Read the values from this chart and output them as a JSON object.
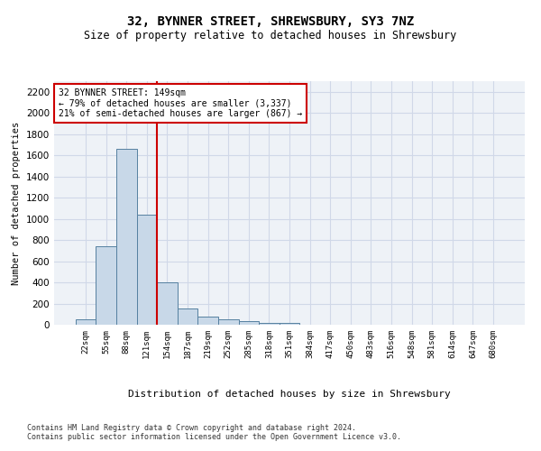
{
  "title": "32, BYNNER STREET, SHREWSBURY, SY3 7NZ",
  "subtitle": "Size of property relative to detached houses in Shrewsbury",
  "xlabel": "Distribution of detached houses by size in Shrewsbury",
  "ylabel": "Number of detached properties",
  "footer_line1": "Contains HM Land Registry data © Crown copyright and database right 2024.",
  "footer_line2": "Contains public sector information licensed under the Open Government Licence v3.0.",
  "bar_labels": [
    "22sqm",
    "55sqm",
    "88sqm",
    "121sqm",
    "154sqm",
    "187sqm",
    "219sqm",
    "252sqm",
    "285sqm",
    "318sqm",
    "351sqm",
    "384sqm",
    "417sqm",
    "450sqm",
    "483sqm",
    "516sqm",
    "548sqm",
    "581sqm",
    "614sqm",
    "647sqm",
    "680sqm"
  ],
  "bar_values": [
    50,
    740,
    1660,
    1040,
    400,
    150,
    80,
    50,
    30,
    20,
    20,
    0,
    0,
    0,
    0,
    0,
    0,
    0,
    0,
    0,
    0
  ],
  "bar_color": "#c8d8e8",
  "bar_edge_color": "#5580a0",
  "vline_color": "#cc0000",
  "annotation_text": "32 BYNNER STREET: 149sqm\n← 79% of detached houses are smaller (3,337)\n21% of semi-detached houses are larger (867) →",
  "annotation_box_color": "#cc0000",
  "ylim": [
    0,
    2300
  ],
  "yticks": [
    0,
    200,
    400,
    600,
    800,
    1000,
    1200,
    1400,
    1600,
    1800,
    2000,
    2200
  ],
  "grid_color": "#d0d8e8",
  "background_color": "#eef2f7"
}
